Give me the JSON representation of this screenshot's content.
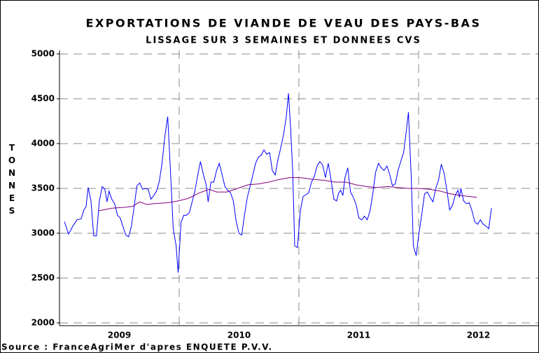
{
  "chart_data": {
    "type": "line",
    "title": "EXPORTATIONS DE VIANDE DE VEAU DES PAYS-BAS",
    "subtitle": "LISSAGE SUR 3 SEMAINES ET DONNEES CVS",
    "y_label": "TONNES",
    "source": "Source : FranceAgriMer d'apres ENQUETE P.V.V.",
    "xlim": [
      2009,
      2013
    ],
    "xticks": [
      {
        "value": 2009.5,
        "label": "2009"
      },
      {
        "value": 2010.5,
        "label": "2010"
      },
      {
        "value": 2011.5,
        "label": "2011"
      },
      {
        "value": 2012.5,
        "label": "2012"
      }
    ],
    "xgrid": [
      2010,
      2011,
      2012
    ],
    "ylim": [
      2000,
      5000
    ],
    "yticks": [
      2000,
      2500,
      3000,
      3500,
      4000,
      4500,
      5000
    ],
    "grid": true,
    "series": [
      {
        "color": "#0000ff",
        "x": [
          2009.041,
          2009.076,
          2009.111,
          2009.146,
          2009.181,
          2009.204,
          2009.222,
          2009.239,
          2009.262,
          2009.286,
          2009.309,
          2009.332,
          2009.356,
          2009.379,
          2009.397,
          2009.414,
          2009.437,
          2009.461,
          2009.484,
          2009.507,
          2009.531,
          2009.554,
          2009.577,
          2009.601,
          2009.624,
          2009.647,
          2009.671,
          2009.694,
          2009.717,
          2009.741,
          2009.764,
          2009.787,
          2009.811,
          2009.834,
          2009.857,
          2009.88,
          2009.904,
          2009.927,
          2009.95,
          2009.974,
          2009.991,
          2010.015,
          2010.038,
          2010.061,
          2010.085,
          2010.108,
          2010.131,
          2010.155,
          2010.178,
          2010.201,
          2010.224,
          2010.242,
          2010.265,
          2010.289,
          2010.312,
          2010.335,
          2010.359,
          2010.382,
          2010.405,
          2010.429,
          2010.452,
          2010.475,
          2010.499,
          2010.522,
          2010.545,
          2010.569,
          2010.592,
          2010.615,
          2010.638,
          2010.662,
          2010.685,
          2010.708,
          2010.732,
          2010.755,
          2010.778,
          2010.802,
          2010.825,
          2010.848,
          2010.872,
          2010.895,
          2010.913,
          2010.93,
          2010.948,
          2010.965,
          2010.988,
          2011.012,
          2011.035,
          2011.058,
          2011.082,
          2011.105,
          2011.128,
          2011.152,
          2011.175,
          2011.198,
          2011.222,
          2011.233,
          2011.245,
          2011.268,
          2011.292,
          2011.315,
          2011.332,
          2011.35,
          2011.367,
          2011.385,
          2011.408,
          2011.431,
          2011.455,
          2011.478,
          2011.501,
          2011.525,
          2011.548,
          2011.571,
          2011.595,
          2011.618,
          2011.641,
          2011.665,
          2011.688,
          2011.711,
          2011.735,
          2011.758,
          2011.781,
          2011.805,
          2011.828,
          2011.851,
          2011.875,
          2011.898,
          2011.915,
          2011.939,
          2011.956,
          2011.98,
          2012.003,
          2012.026,
          2012.05,
          2012.073,
          2012.096,
          2012.12,
          2012.143,
          2012.166,
          2012.19,
          2012.213,
          2012.236,
          2012.259,
          2012.283,
          2012.306,
          2012.329,
          2012.341,
          2012.353,
          2012.376,
          2012.399,
          2012.423,
          2012.446,
          2012.469,
          2012.493,
          2012.516,
          2012.539,
          2012.563,
          2012.586,
          2012.609
        ],
        "values": [
          3130,
          2990,
          3080,
          3150,
          3160,
          3260,
          3300,
          3510,
          3370,
          2970,
          2970,
          3350,
          3520,
          3490,
          3350,
          3470,
          3380,
          3330,
          3200,
          3170,
          3070,
          2980,
          2960,
          3080,
          3300,
          3530,
          3560,
          3490,
          3500,
          3490,
          3380,
          3420,
          3470,
          3580,
          3780,
          4080,
          4300,
          3700,
          3050,
          2860,
          2560,
          3120,
          3200,
          3200,
          3230,
          3350,
          3470,
          3650,
          3800,
          3660,
          3550,
          3350,
          3570,
          3570,
          3700,
          3780,
          3650,
          3520,
          3480,
          3450,
          3360,
          3140,
          3000,
          2980,
          3200,
          3400,
          3520,
          3650,
          3780,
          3850,
          3870,
          3930,
          3880,
          3900,
          3700,
          3650,
          3820,
          3950,
          4100,
          4300,
          4560,
          4200,
          3700,
          2860,
          2840,
          3250,
          3410,
          3430,
          3450,
          3570,
          3630,
          3750,
          3800,
          3760,
          3620,
          3700,
          3780,
          3600,
          3380,
          3360,
          3450,
          3480,
          3420,
          3620,
          3730,
          3460,
          3400,
          3320,
          3170,
          3150,
          3190,
          3150,
          3250,
          3450,
          3680,
          3780,
          3730,
          3700,
          3750,
          3660,
          3530,
          3550,
          3700,
          3800,
          3900,
          4150,
          4350,
          3600,
          2860,
          2750,
          3000,
          3200,
          3440,
          3460,
          3400,
          3350,
          3500,
          3590,
          3770,
          3670,
          3480,
          3260,
          3310,
          3420,
          3480,
          3400,
          3500,
          3360,
          3330,
          3340,
          3250,
          3130,
          3100,
          3150,
          3100,
          3080,
          3050,
          3280
        ]
      },
      {
        "color": "#800080",
        "x": [
          2009.327,
          2009.437,
          2009.554,
          2009.612,
          2009.671,
          2009.729,
          2009.787,
          2009.904,
          2009.991,
          2010.079,
          2010.166,
          2010.254,
          2010.312,
          2010.399,
          2010.487,
          2010.574,
          2010.662,
          2010.749,
          2010.837,
          2010.924,
          2011.012,
          2011.128,
          2011.216,
          2011.303,
          2011.391,
          2011.478,
          2011.566,
          2011.653,
          2011.741,
          2011.828,
          2011.915,
          2012.003,
          2012.09,
          2012.178,
          2012.265,
          2012.353,
          2012.487
        ],
        "values": [
          3250,
          3280,
          3290,
          3300,
          3350,
          3320,
          3330,
          3340,
          3360,
          3390,
          3450,
          3490,
          3460,
          3460,
          3500,
          3540,
          3550,
          3570,
          3600,
          3620,
          3620,
          3600,
          3590,
          3570,
          3570,
          3540,
          3520,
          3510,
          3520,
          3510,
          3500,
          3500,
          3490,
          3470,
          3440,
          3420,
          3400
        ]
      }
    ]
  }
}
